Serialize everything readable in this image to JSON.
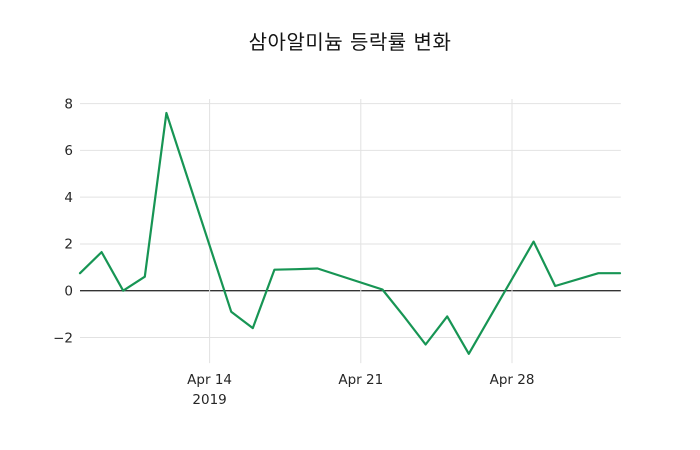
{
  "page": {
    "background": "#ffffff"
  },
  "chart_data": {
    "type": "line",
    "title": "삼아알미늄 등락률 변화",
    "xlabel": "",
    "ylabel": "",
    "legend": "none",
    "grid": true,
    "x": [
      "2019-04-08",
      "2019-04-09",
      "2019-04-10",
      "2019-04-11",
      "2019-04-12",
      "2019-04-15",
      "2019-04-16",
      "2019-04-17",
      "2019-04-18",
      "2019-04-19",
      "2019-04-22",
      "2019-04-23",
      "2019-04-24",
      "2019-04-25",
      "2019-04-26",
      "2019-04-29",
      "2019-04-30",
      "2019-05-02",
      "2019-05-03"
    ],
    "values": [
      0.75,
      1.65,
      0.0,
      0.6,
      7.6,
      -0.9,
      -1.6,
      0.9,
      0.92,
      0.95,
      0.05,
      -1.1,
      -2.3,
      -1.1,
      -2.7,
      2.1,
      0.2,
      0.75,
      0.75
    ],
    "series": [
      {
        "color": "#179554"
      }
    ],
    "x_ticks": [
      {
        "date": "2019-04-14",
        "label": "Apr 14",
        "sublabel": "2019"
      },
      {
        "date": "2019-04-21",
        "label": "Apr 21",
        "sublabel": ""
      },
      {
        "date": "2019-04-28",
        "label": "Apr 28",
        "sublabel": ""
      }
    ],
    "y_ticks": [
      8,
      6,
      4,
      2,
      0,
      -2
    ],
    "ylim": [
      -3.1,
      8.2
    ],
    "colors": {
      "grid": "#e2e2e2",
      "zero_line": "#333333",
      "tick_text": "#262626",
      "title_text": "#141414"
    }
  }
}
